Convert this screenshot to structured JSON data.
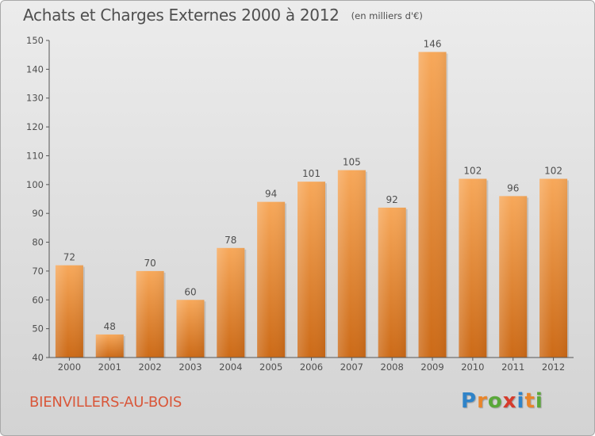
{
  "header": {
    "title": "Achats et Charges Externes 2000 à 2012",
    "unit": "(en milliers d'€)"
  },
  "footer": {
    "commune": "BIENVILLERS-AU-BOIS",
    "logo_letters": [
      "P",
      "r",
      "o",
      "x",
      "i",
      "t",
      "i"
    ],
    "logo_colors": [
      "#2f83c8",
      "#e9852a",
      "#5aa83a",
      "#d63b2c",
      "#2f83c8",
      "#e9852a",
      "#5aa83a"
    ]
  },
  "colors": {
    "bar_light": "#f7a85a",
    "bar_dark": "#cc6a17",
    "axis": "#555555",
    "text": "#4f4f4f",
    "title_accent": "#d9573a"
  },
  "chart_data": {
    "type": "bar",
    "title": "Achats et Charges Externes 2000 à 2012",
    "subtitle": "(en milliers d'€)",
    "xlabel": "",
    "ylabel": "",
    "categories": [
      "2000",
      "2001",
      "2002",
      "2003",
      "2004",
      "2005",
      "2006",
      "2007",
      "2008",
      "2009",
      "2010",
      "2011",
      "2012"
    ],
    "values": [
      72,
      48,
      70,
      60,
      78,
      94,
      101,
      105,
      92,
      146,
      102,
      96,
      102
    ],
    "ylim": [
      40,
      150
    ],
    "yticks": [
      40,
      50,
      60,
      70,
      80,
      90,
      100,
      110,
      120,
      130,
      140,
      150
    ],
    "grid": false,
    "legend": "none"
  }
}
